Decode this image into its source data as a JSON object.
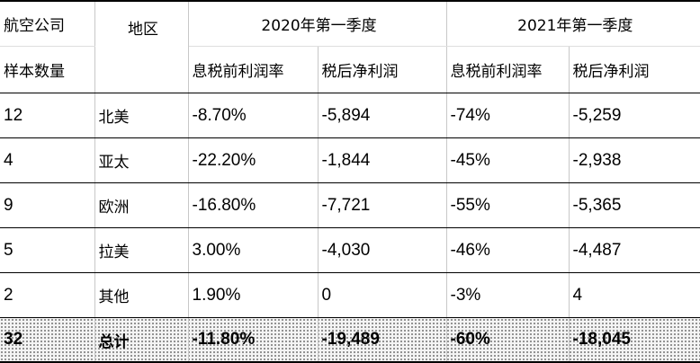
{
  "header": {
    "col1_line1": "航空公司",
    "col1_line2": "样本数量",
    "region": "地区",
    "year2020": "2020年第一季度",
    "year2021": "2021年第一季度",
    "ebit_margin": "息税前利润率",
    "net_profit": "税后净利润"
  },
  "rows": [
    {
      "count": "12",
      "region": "北美",
      "m2020": "-8.70%",
      "p2020": "-5,894",
      "m2021": "-74%",
      "p2021": "-5,259"
    },
    {
      "count": "4",
      "region": "亚太",
      "m2020": "-22.20%",
      "p2020": "-1,844",
      "m2021": "-45%",
      "p2021": "-2,938"
    },
    {
      "count": "9",
      "region": "欧洲",
      "m2020": "-16.80%",
      "p2020": "-7,721",
      "m2021": "-55%",
      "p2021": "-5,365"
    },
    {
      "count": "5",
      "region": "拉美",
      "m2020": "3.00%",
      "p2020": "-4,030",
      "m2021": "-46%",
      "p2021": "-4,487"
    },
    {
      "count": "2",
      "region": "其他",
      "m2020": "1.90%",
      "p2020": "0",
      "m2021": "-3%",
      "p2021": "4"
    }
  ],
  "total": {
    "count": "32",
    "region": "总计",
    "m2020": "-11.80%",
    "p2020": "-19,489",
    "m2021": "-60%",
    "p2021": "-18,045"
  }
}
